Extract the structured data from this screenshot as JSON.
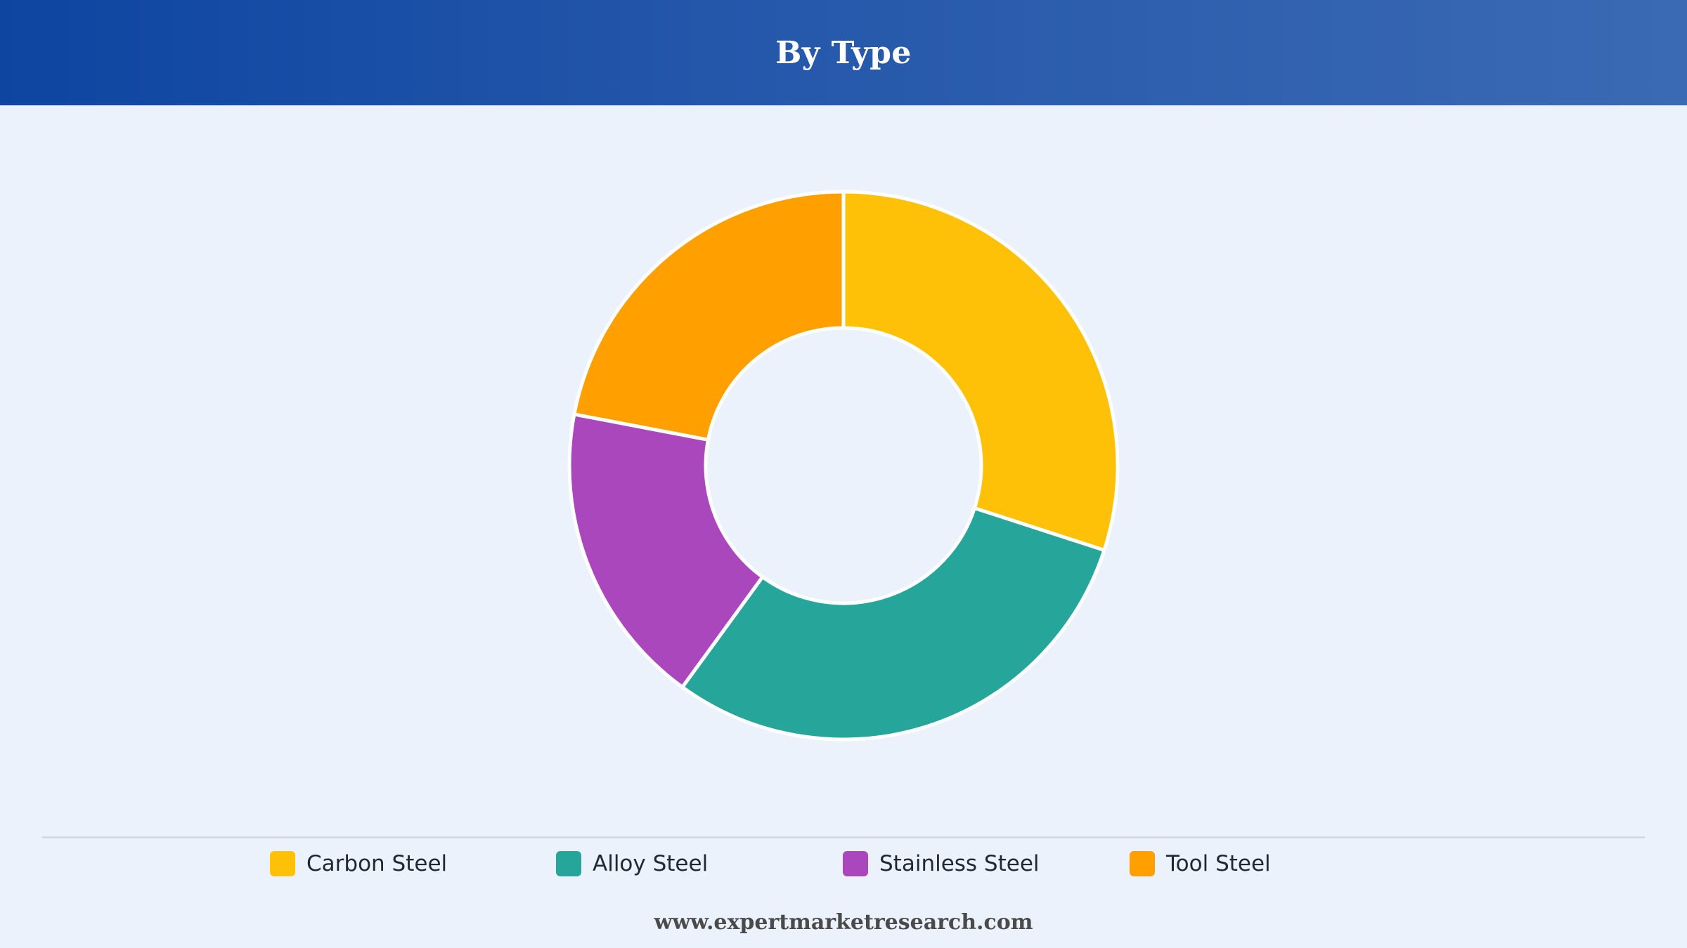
{
  "header": {
    "title": "By Type"
  },
  "chart_data": {
    "type": "pie",
    "style": "donut",
    "title": "By Type",
    "categories": [
      "Carbon Steel",
      "Alloy Steel",
      "Stainless Steel",
      "Tool Steel"
    ],
    "values": [
      30,
      30,
      18,
      22
    ],
    "colors": [
      "#FFC107",
      "#26A69A",
      "#AB47BC",
      "#FFA000"
    ],
    "legend_position": "bottom"
  },
  "legend": {
    "items": [
      {
        "label": "Carbon Steel",
        "color": "#FFC107"
      },
      {
        "label": "Alloy Steel",
        "color": "#26A69A"
      },
      {
        "label": "Stainless Steel",
        "color": "#AB47BC"
      },
      {
        "label": "Tool Steel",
        "color": "#FFA000"
      }
    ]
  },
  "footer": {
    "text": "www.expertmarketresearch.com"
  }
}
